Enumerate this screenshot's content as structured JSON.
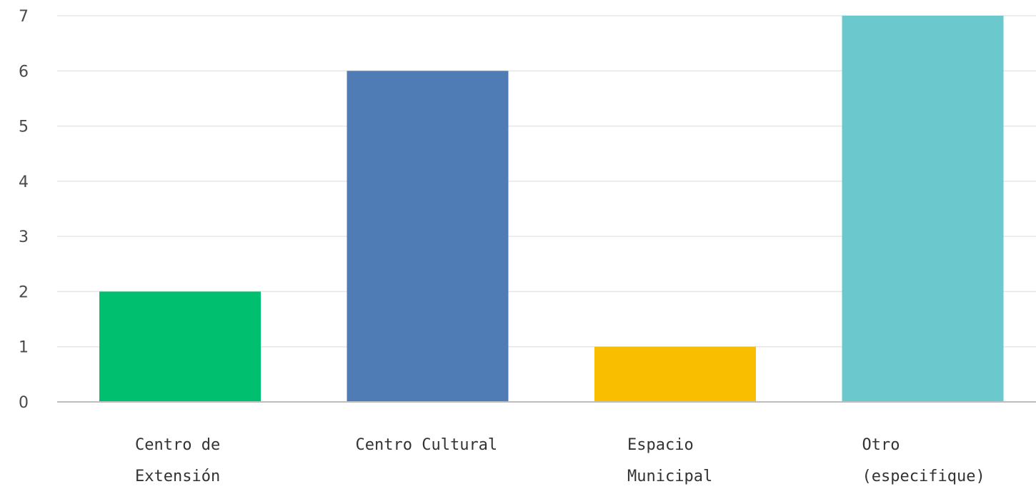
{
  "chart_data": {
    "type": "bar",
    "categories": [
      [
        "Centro de",
        "Extensión"
      ],
      [
        "Centro Cultural"
      ],
      [
        "Espacio",
        "Municipal"
      ],
      [
        "Otro",
        "(especifique)"
      ]
    ],
    "values": [
      2,
      6,
      1,
      7
    ],
    "colors": [
      "#00bf6f",
      "#507cb6",
      "#f9be00",
      "#6bc8cd"
    ],
    "ylim": [
      0,
      7
    ],
    "yticks": [
      0,
      1,
      2,
      3,
      4,
      5,
      6,
      7
    ],
    "grid": true,
    "legend": "none"
  }
}
